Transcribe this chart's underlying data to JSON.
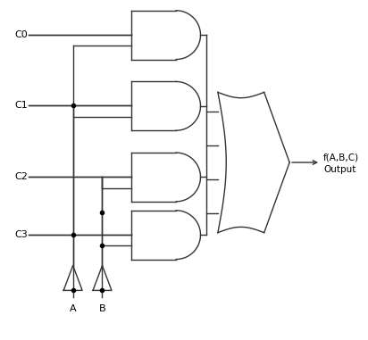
{
  "bg_color": "#ffffff",
  "line_color": "#333333",
  "dot_color": "#000000",
  "text_color": "#000000",
  "labels_left": [
    "C0",
    "C1",
    "C2",
    "C3"
  ],
  "label_bottom_A": "A",
  "label_bottom_B": "B",
  "label_output": "f(A,B,C)",
  "label_output2": "Output",
  "figsize": [
    4.12,
    3.81
  ],
  "dpi": 100
}
